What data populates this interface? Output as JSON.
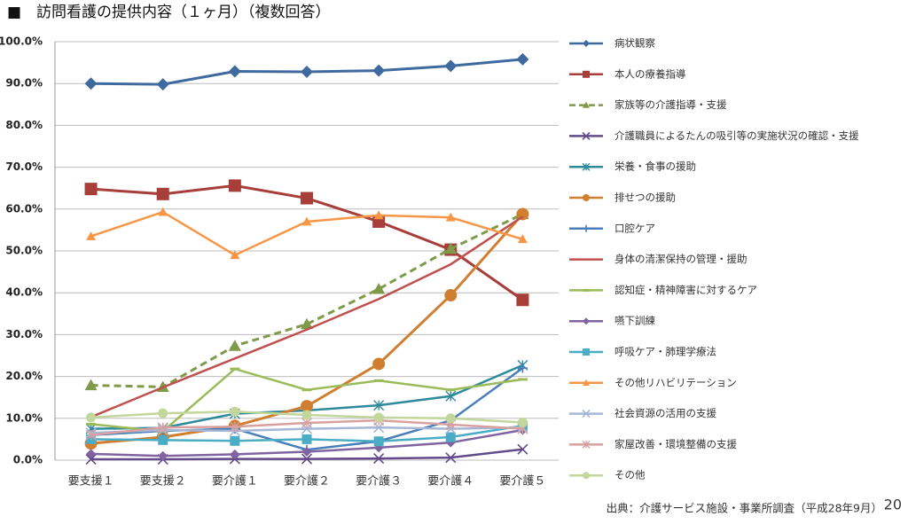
{
  "chart_data": {
    "type": "line",
    "title": "■　訪問看護の提供内容（１ヶ月）（複数回答）",
    "source": "出典：介護サービス施設・事業所調査（平成28年9月）",
    "page_number": "20",
    "categories": [
      "要支援１",
      "要支援２",
      "要介護１",
      "要介護２",
      "要介護３",
      "要介護４",
      "要介護５"
    ],
    "ylim": [
      0,
      100
    ],
    "yticks": [
      {
        "value": 0,
        "label": "0.0%"
      },
      {
        "value": 10,
        "label": "10.0%"
      },
      {
        "value": 20,
        "label": "20.0%"
      },
      {
        "value": 30,
        "label": "30.0%"
      },
      {
        "value": 40,
        "label": "40.0%"
      },
      {
        "value": 50,
        "label": "50.0%"
      },
      {
        "value": 60,
        "label": "60.0%"
      },
      {
        "value": 70,
        "label": "70.0%"
      },
      {
        "value": 80,
        "label": "80.0%"
      },
      {
        "value": 90,
        "label": "90.0%"
      },
      {
        "value": 100,
        "label": "100.0%"
      }
    ],
    "grid": true,
    "legend": "right",
    "series": [
      {
        "name": "病状観察",
        "color": "#3f6aa0",
        "marker": "diamond",
        "values": [
          90.0,
          89.8,
          92.9,
          92.8,
          93.1,
          94.2,
          95.8
        ]
      },
      {
        "name": "本人の療養指導",
        "color": "#a83e3a",
        "marker": "square",
        "values": [
          64.8,
          63.6,
          65.6,
          62.6,
          57.0,
          50.3,
          38.3
        ]
      },
      {
        "name": "家族等の介護指導・支援",
        "color": "#7f9a48",
        "marker": "triangle",
        "dash": true,
        "values": [
          17.9,
          17.5,
          27.3,
          32.5,
          40.9,
          50.5,
          58.8
        ]
      },
      {
        "name": "介護職員によるたんの吸引等の実施状況の確認・支援",
        "color": "#634a8a",
        "marker": "x",
        "values": [
          0.2,
          0.2,
          0.3,
          0.3,
          0.4,
          0.6,
          2.6
        ]
      },
      {
        "name": "栄養・食事の援助",
        "color": "#2f8a9e",
        "marker": "star",
        "values": [
          7.5,
          7.7,
          11.1,
          11.9,
          13.1,
          15.3,
          22.7
        ]
      },
      {
        "name": "排せつの援助",
        "color": "#d07f31",
        "marker": "circle",
        "values": [
          4.0,
          5.5,
          8.2,
          12.9,
          23.0,
          39.4,
          58.8
        ]
      },
      {
        "name": "口腔ケア",
        "color": "#4a7ebb",
        "marker": "plus",
        "values": [
          6.0,
          7.0,
          7.5,
          2.5,
          4.5,
          9.5,
          22.0
        ]
      },
      {
        "name": "身体の清潔保持の管理・援助",
        "color": "#c0504d",
        "marker": "none",
        "values": [
          10.3,
          17.4,
          24.3,
          31.2,
          38.5,
          46.8,
          58.2
        ]
      },
      {
        "name": "認知症・精神障害に対するケア",
        "color": "#9bbb59",
        "marker": "dash",
        "values": [
          8.6,
          6.9,
          21.8,
          16.8,
          19.0,
          16.8,
          19.3
        ]
      },
      {
        "name": "嚥下訓練",
        "color": "#8064a2",
        "marker": "diamond",
        "values": [
          1.5,
          1.0,
          1.4,
          2.0,
          3.0,
          4.2,
          7.2
        ]
      },
      {
        "name": "呼吸ケア・肺理学療法",
        "color": "#4bacc6",
        "marker": "square",
        "values": [
          5.0,
          4.8,
          4.6,
          5.0,
          4.5,
          5.5,
          8.2
        ]
      },
      {
        "name": "その他リハビリテーション",
        "color": "#f79646",
        "marker": "triangle",
        "values": [
          53.5,
          59.3,
          49.0,
          57.0,
          58.5,
          58.0,
          52.8
        ]
      },
      {
        "name": "社会資源の活用の支援",
        "color": "#a5b6d6",
        "marker": "x",
        "values": [
          6.5,
          7.2,
          7.0,
          7.5,
          7.8,
          7.5,
          7.8
        ]
      },
      {
        "name": "家屋改善・環境整備の支援",
        "color": "#d9a0a0",
        "marker": "star",
        "values": [
          6.0,
          7.8,
          8.0,
          8.9,
          9.5,
          8.5,
          7.5
        ]
      },
      {
        "name": "その他",
        "color": "#c3d69b",
        "marker": "circle",
        "values": [
          10.2,
          11.2,
          11.6,
          10.8,
          10.2,
          10.0,
          9.0
        ]
      }
    ]
  }
}
